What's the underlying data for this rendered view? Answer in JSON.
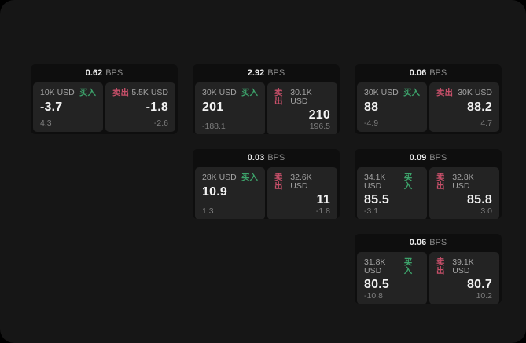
{
  "window": {
    "backdrop_color": "#000000",
    "background_color": "#161616"
  },
  "labels": {
    "bps_unit": "BPS"
  },
  "colors": {
    "buy": "#3da36b",
    "sell": "#c8506a"
  },
  "cards": [
    {
      "grid": {
        "row": 1,
        "col": 1
      },
      "bps": "0.62",
      "buy": {
        "volume": "10K USD",
        "side_label": "买入",
        "price": "-3.7",
        "sub_value": "4.3"
      },
      "sell": {
        "side_label": "卖出",
        "volume": "5.5K USD",
        "price": "-1.8",
        "sub_value": "-2.6"
      }
    },
    {
      "grid": {
        "row": 1,
        "col": 2
      },
      "bps": "2.92",
      "buy": {
        "volume": "30K USD",
        "side_label": "买入",
        "price": "201",
        "sub_value": "-188.1"
      },
      "sell": {
        "side_label": "卖出",
        "volume": "30.1K USD",
        "price": "210",
        "sub_value": "196.5"
      }
    },
    {
      "grid": {
        "row": 1,
        "col": 3
      },
      "bps": "0.06",
      "buy": {
        "volume": "30K USD",
        "side_label": "买入",
        "price": "88",
        "sub_value": "-4.9"
      },
      "sell": {
        "side_label": "卖出",
        "volume": "30K USD",
        "price": "88.2",
        "sub_value": "4.7"
      }
    },
    {
      "grid": {
        "row": 2,
        "col": 2
      },
      "bps": "0.03",
      "buy": {
        "volume": "28K USD",
        "side_label": "买入",
        "price": "10.9",
        "sub_value": "1.3"
      },
      "sell": {
        "side_label": "卖出",
        "volume": "32.6K USD",
        "price": "11",
        "sub_value": "-1.8"
      }
    },
    {
      "grid": {
        "row": 2,
        "col": 3
      },
      "bps": "0.09",
      "buy": {
        "volume": "34.1K USD",
        "side_label": "买入",
        "price": "85.5",
        "sub_value": "-3.1"
      },
      "sell": {
        "side_label": "卖出",
        "volume": "32.8K USD",
        "price": "85.8",
        "sub_value": "3.0"
      }
    },
    {
      "grid": {
        "row": 3,
        "col": 3
      },
      "bps": "0.06",
      "buy": {
        "volume": "31.8K USD",
        "side_label": "买入",
        "price": "80.5",
        "sub_value": "-10.8"
      },
      "sell": {
        "side_label": "卖出",
        "volume": "39.1K USD",
        "price": "80.7",
        "sub_value": "10.2"
      }
    }
  ]
}
